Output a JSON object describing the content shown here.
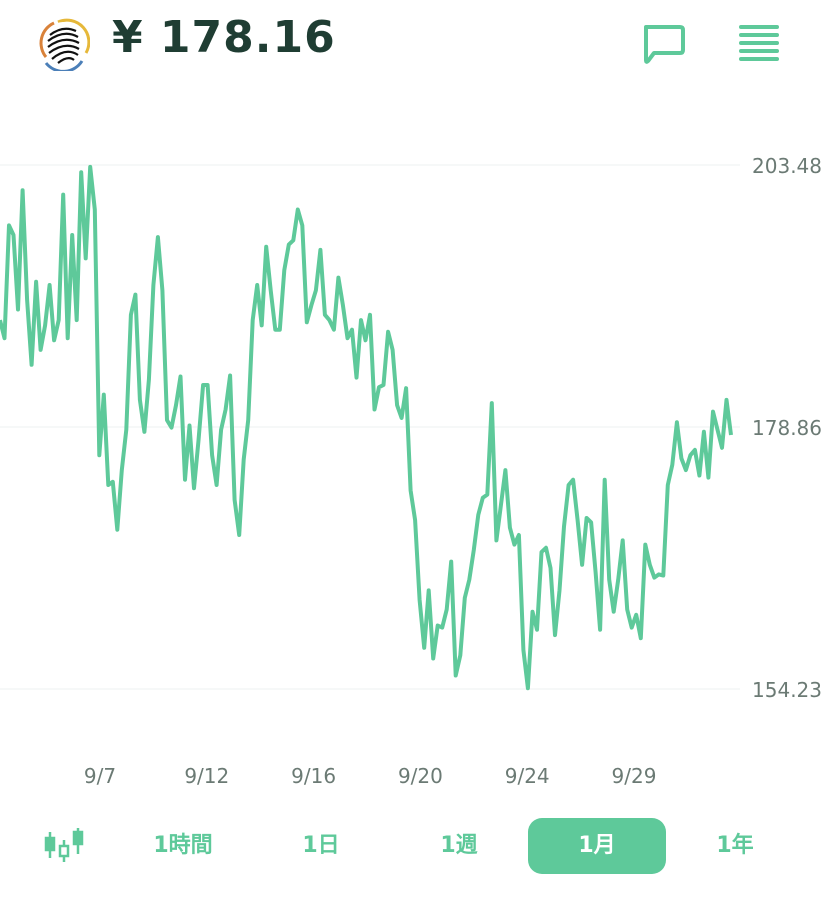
{
  "header": {
    "price": "¥ 178.16",
    "logo_icon": "fingerprint-globe-logo",
    "chat_icon": "chat-bubble-icon",
    "menu_icon": "menu-lines-icon"
  },
  "colors": {
    "accent": "#5ec99a",
    "text": "#1f3d33",
    "axis": "#6b7a74",
    "grid": "#eef2f0"
  },
  "tabs": [
    {
      "label": "1時間",
      "active": false
    },
    {
      "label": "1日",
      "active": false
    },
    {
      "label": "1週",
      "active": false
    },
    {
      "label": "1月",
      "active": true
    },
    {
      "label": "1年",
      "active": false
    }
  ],
  "chart_data": {
    "type": "line",
    "y_ticks": [
      "203.48",
      "178.86",
      "154.23"
    ],
    "ylim": [
      154.23,
      203.48
    ],
    "x_ticks": [
      "9/7",
      "9/12",
      "9/16",
      "9/20",
      "9/24",
      "9/29"
    ],
    "grid": true,
    "values": [
      188.9,
      187.2,
      197.8,
      196.9,
      189.9,
      201.1,
      190.8,
      184.7,
      192.5,
      186.1,
      188.4,
      192.2,
      187.0,
      188.9,
      200.7,
      187.2,
      196.9,
      188.9,
      202.8,
      194.7,
      203.3,
      199.3,
      176.2,
      181.9,
      173.4,
      173.7,
      169.2,
      174.8,
      178.6,
      189.4,
      191.3,
      181.4,
      178.4,
      183.3,
      192.2,
      196.7,
      191.7,
      179.5,
      178.8,
      180.9,
      183.6,
      173.9,
      179.0,
      173.1,
      177.6,
      182.8,
      182.8,
      176.2,
      173.4,
      178.6,
      180.5,
      183.7,
      172.0,
      168.7,
      175.8,
      179.5,
      188.9,
      192.2,
      188.4,
      195.8,
      191.7,
      188.0,
      188.0,
      193.6,
      196.0,
      196.4,
      199.3,
      197.8,
      188.7,
      190.3,
      191.7,
      195.5,
      189.4,
      188.9,
      188.0,
      192.9,
      190.3,
      187.2,
      188.0,
      183.5,
      188.9,
      187.0,
      189.4,
      180.5,
      182.6,
      182.8,
      187.8,
      186.1,
      180.9,
      179.7,
      182.5,
      172.9,
      170.1,
      162.6,
      158.1,
      163.5,
      157.1,
      160.2,
      160.0,
      161.7,
      166.2,
      155.5,
      157.4,
      162.8,
      164.5,
      167.3,
      170.6,
      172.2,
      172.5,
      181.1,
      168.2,
      171.5,
      174.8,
      169.4,
      167.8,
      168.7,
      157.9,
      154.3,
      161.5,
      159.8,
      167.1,
      167.5,
      165.6,
      159.3,
      163.5,
      169.5,
      173.4,
      173.9,
      170.1,
      165.9,
      170.3,
      169.9,
      165.2,
      159.8,
      173.9,
      164.5,
      161.5,
      164.5,
      168.2,
      161.7,
      160.0,
      161.2,
      159.0,
      167.8,
      165.9,
      164.7,
      165.0,
      164.9,
      173.4,
      175.3,
      179.3,
      175.9,
      174.8,
      176.2,
      176.7,
      174.3,
      178.4,
      174.1,
      180.3,
      178.6,
      176.9,
      181.4,
      178.1
    ]
  }
}
